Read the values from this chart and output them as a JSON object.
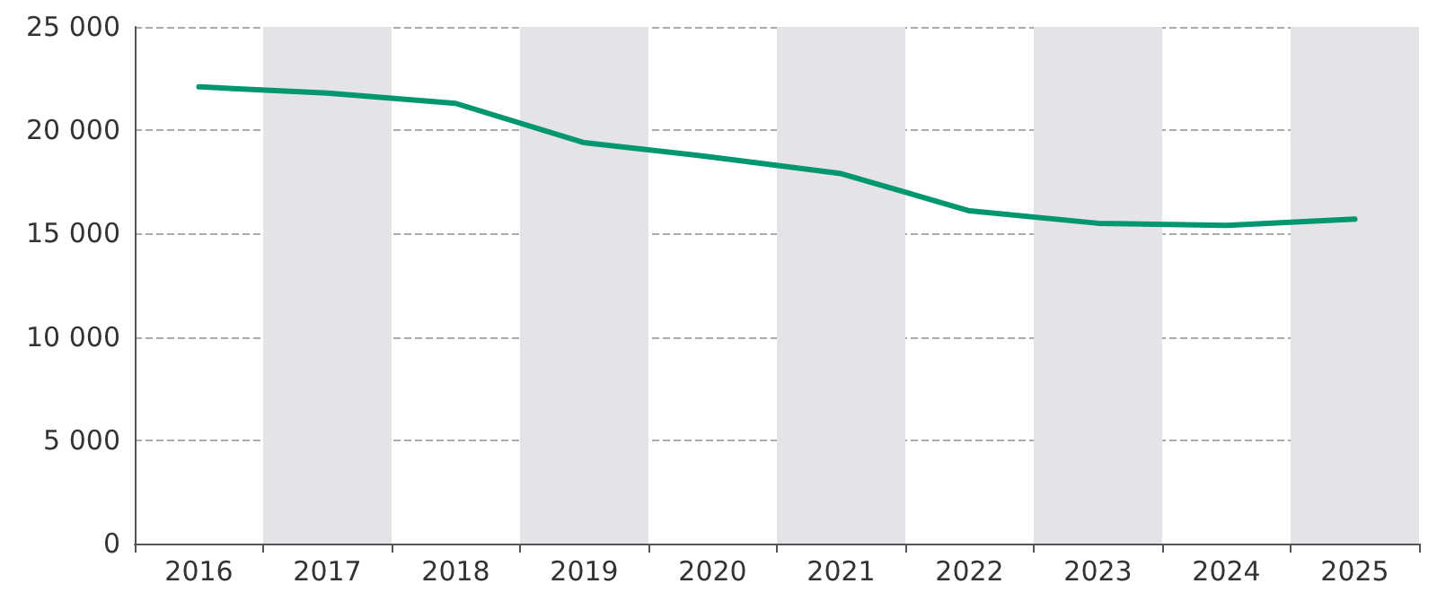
{
  "chart_data": {
    "type": "line",
    "categories": [
      "2016",
      "2017",
      "2018",
      "2019",
      "2020",
      "2021",
      "2022",
      "2023",
      "2024",
      "2025"
    ],
    "series": [
      {
        "color": "#009670",
        "values": [
          22100,
          21800,
          21300,
          19400,
          18700,
          17900,
          16100,
          15500,
          15400,
          15700
        ]
      }
    ],
    "ylim": [
      0,
      25000
    ],
    "yticks": [
      0,
      {
        "value": 5000,
        "label": "5 000"
      },
      {
        "value": 10000,
        "label": "10 000"
      },
      {
        "value": 15000,
        "label": "15 000"
      },
      {
        "value": 20000,
        "label": "20 000"
      },
      {
        "value": 25000,
        "label": "25 000"
      }
    ],
    "grid": "y",
    "marker": "none",
    "line_style": "solid"
  }
}
